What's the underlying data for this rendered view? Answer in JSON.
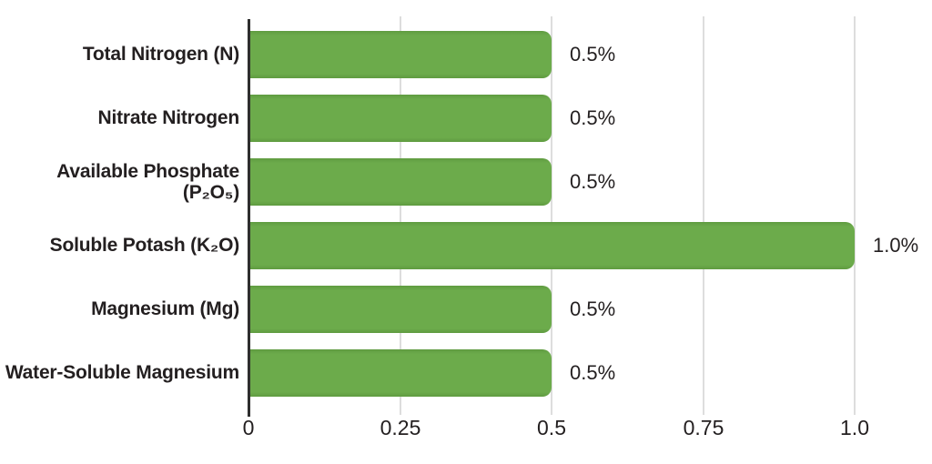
{
  "chart_data": {
    "type": "bar",
    "orientation": "horizontal",
    "title": "",
    "xlabel": "",
    "ylabel": "",
    "categories": [
      "Total Nitrogen (N)",
      "Nitrate Nitrogen",
      "Available Phosphate (P₂O₅)",
      "Soluble Potash (K₂O)",
      "Magnesium (Mg)",
      "Water-Soluble Magnesium"
    ],
    "values": [
      0.5,
      0.5,
      0.5,
      1.0,
      0.5,
      0.5
    ],
    "value_labels": [
      "0.5%",
      "0.5%",
      "0.5%",
      "1.0%",
      "0.5%",
      "0.5%"
    ],
    "xlim": [
      0,
      1.0
    ],
    "x_ticks": [
      {
        "value": 0,
        "label": "0"
      },
      {
        "value": 0.25,
        "label": "0.25"
      },
      {
        "value": 0.5,
        "label": "0.5"
      },
      {
        "value": 0.75,
        "label": "0.75"
      },
      {
        "value": 1.0,
        "label": "1.0"
      }
    ],
    "grid": "vertical-gridlines-on",
    "legend": "none",
    "colors": {
      "bar_fill": "#6cab4b",
      "bar_edge": "#5f9b40",
      "axis_line": "#2e2e2e",
      "gridline": "#dddddd",
      "text": "#231f20",
      "background": "#ffffff"
    }
  }
}
